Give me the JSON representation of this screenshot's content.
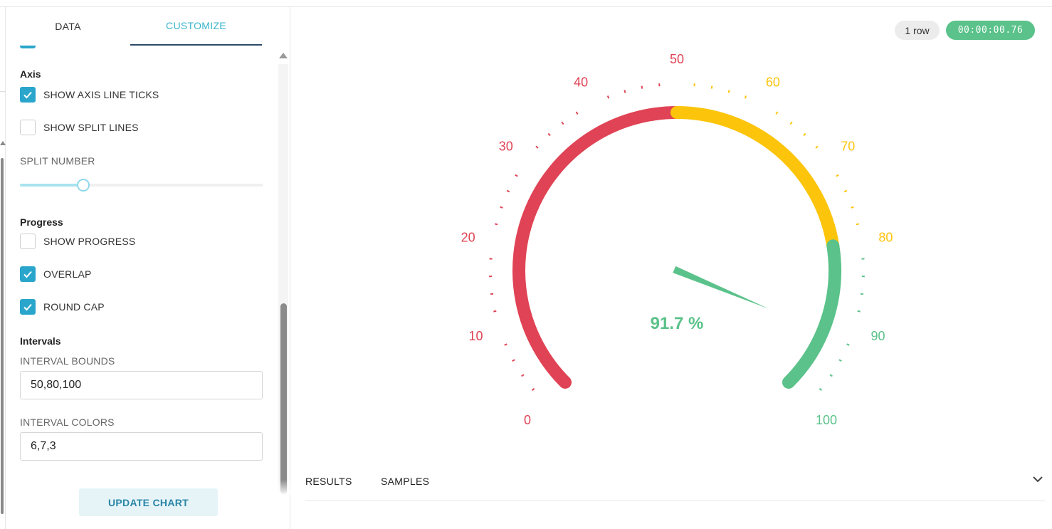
{
  "tabs": {
    "data": "DATA",
    "customize": "CUSTOMIZE"
  },
  "axis": {
    "heading": "Axis",
    "show_axis_line_ticks": {
      "label": "SHOW AXIS LINE TICKS",
      "checked": true
    },
    "show_split_lines": {
      "label": "SHOW SPLIT LINES",
      "checked": false
    },
    "split_number": {
      "label": "SPLIT NUMBER",
      "value_fraction": 0.26
    }
  },
  "progress": {
    "heading": "Progress",
    "show_progress": {
      "label": "SHOW PROGRESS",
      "checked": false
    },
    "overlap": {
      "label": "OVERLAP",
      "checked": true
    },
    "round_cap": {
      "label": "ROUND CAP",
      "checked": true
    }
  },
  "intervals": {
    "heading": "Intervals",
    "bounds": {
      "label": "INTERVAL BOUNDS",
      "value": "50,80,100"
    },
    "colors": {
      "label": "INTERVAL COLORS",
      "value": "6,7,3"
    }
  },
  "update_button": "UPDATE CHART",
  "status": {
    "rows": "1 row",
    "elapsed": "00:00:00.76"
  },
  "bottom_tabs": {
    "results": "RESULTS",
    "samples": "SAMPLES"
  },
  "chart_data": {
    "type": "gauge",
    "min": 0,
    "max": 100,
    "value": 91.7,
    "value_label": "91.7 %",
    "tick_labels": [
      "0",
      "10",
      "20",
      "30",
      "40",
      "50",
      "60",
      "70",
      "80",
      "90",
      "100"
    ],
    "intervals": [
      {
        "upper": 50,
        "color": "#e04355"
      },
      {
        "upper": 80,
        "color": "#fcc40b"
      },
      {
        "upper": 100,
        "color": "#5ac28a"
      }
    ],
    "pointer_color": "#5ac28a"
  }
}
